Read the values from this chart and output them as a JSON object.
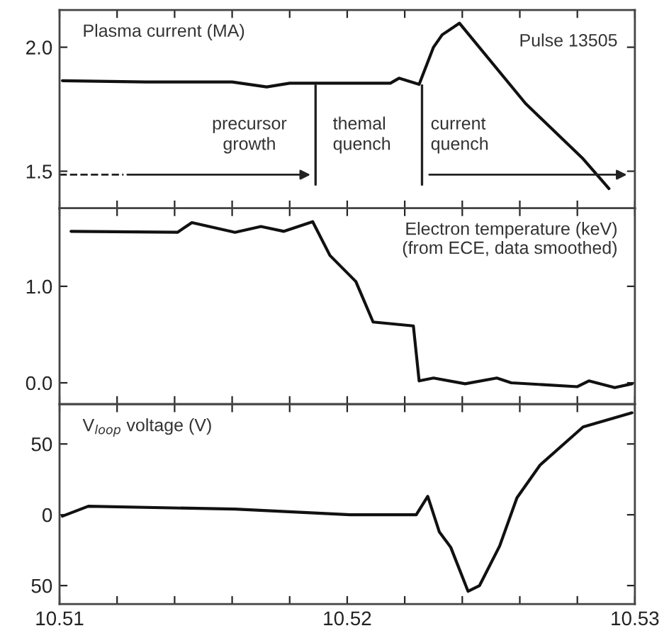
{
  "chart_data": [
    {
      "type": "line",
      "title": "Plasma current (MA)",
      "annotations": [
        "Pulse 13505",
        "precursor\ngrowth",
        "themal\nquench",
        "current\nquench"
      ],
      "series": [
        {
          "color": "#111111",
          "x": [
            10.5101,
            10.513,
            10.516,
            10.5172,
            10.518,
            10.52,
            10.5215,
            10.5218,
            10.5225,
            10.523,
            10.5233,
            10.5239,
            10.5262,
            10.5282,
            10.5291
          ],
          "values": [
            1.865,
            1.86,
            1.86,
            1.84,
            1.855,
            1.855,
            1.855,
            1.875,
            1.85,
            2.0,
            2.05,
            2.097,
            1.773,
            1.55,
            1.43
          ]
        }
      ],
      "xlim": [
        10.51,
        10.53
      ],
      "xticks": [
        10.51,
        {
          "value": 10.512,
          "label": null
        },
        {
          "value": 10.514,
          "label": null
        },
        {
          "value": 10.516,
          "label": null
        },
        {
          "value": 10.518,
          "label": null
        },
        10.52,
        {
          "value": 10.522,
          "label": null
        },
        {
          "value": 10.524,
          "label": null
        },
        {
          "value": 10.526,
          "label": null
        },
        {
          "value": 10.528,
          "label": null
        },
        10.53
      ],
      "ylim": [
        1.35,
        2.15
      ],
      "yticks": [
        {
          "value": 1.5,
          "label": "1.5"
        },
        {
          "value": 2,
          "label": "2.0"
        }
      ],
      "tick_labels": "y",
      "grid": false,
      "ref_lines": [
        {
          "axis": "x",
          "value": 10.5189,
          "label": null
        },
        {
          "axis": "x",
          "value": 10.5226,
          "label": null
        }
      ]
    },
    {
      "type": "line",
      "title": "Electron temperature (keV)\n(from ECE, data smoothed)",
      "series": [
        {
          "color": "#111111",
          "x": [
            10.5104,
            10.5141,
            10.5146,
            10.5161,
            10.517,
            10.5178,
            10.5188,
            10.5194,
            10.5203,
            10.5209,
            10.5223,
            10.5225,
            10.523,
            10.5241,
            10.5252,
            10.5257,
            10.528,
            10.5284,
            10.5293,
            10.5299
          ],
          "values": [
            1.57,
            1.56,
            1.66,
            1.56,
            1.62,
            1.57,
            1.67,
            1.32,
            1.05,
            0.63,
            0.59,
            0.02,
            0.05,
            -0.01,
            0.05,
            0.0,
            -0.04,
            0.02,
            -0.05,
            -0.01
          ]
        }
      ],
      "xlim": [
        10.51,
        10.53
      ],
      "xticks": [
        10.51,
        {
          "value": 10.512,
          "label": null
        },
        {
          "value": 10.514,
          "label": null
        },
        {
          "value": 10.516,
          "label": null
        },
        {
          "value": 10.518,
          "label": null
        },
        10.52,
        {
          "value": 10.522,
          "label": null
        },
        {
          "value": 10.524,
          "label": null
        },
        {
          "value": 10.526,
          "label": null
        },
        {
          "value": 10.528,
          "label": null
        },
        10.53
      ],
      "ylim": [
        -0.22,
        1.81
      ],
      "yticks": [
        {
          "value": 0,
          "label": "0.0"
        },
        {
          "value": 1,
          "label": "1.0"
        }
      ],
      "tick_labels": "y",
      "grid": false
    },
    {
      "type": "line",
      "title": "V$_{loop}$ voltage (V)",
      "series": [
        {
          "color": "#111111",
          "x": [
            10.5101,
            10.511,
            10.5161,
            10.5201,
            10.5224,
            10.5228,
            10.5232,
            10.5236,
            10.5242,
            10.5246,
            10.5253,
            10.5259,
            10.5267,
            10.5282,
            10.5299
          ],
          "values": [
            -1,
            6,
            4,
            0,
            0,
            13,
            -12,
            -23,
            -54,
            -50,
            -22,
            12,
            35,
            62,
            72
          ]
        }
      ],
      "xlim": [
        10.51,
        10.53
      ],
      "xticks": [
        10.51,
        {
          "value": 10.512,
          "label": null
        },
        {
          "value": 10.514,
          "label": null
        },
        {
          "value": 10.516,
          "label": null
        },
        {
          "value": 10.518,
          "label": null
        },
        10.52,
        {
          "value": 10.522,
          "label": null
        },
        {
          "value": 10.524,
          "label": null
        },
        {
          "value": 10.526,
          "label": null
        },
        {
          "value": 10.528,
          "label": null
        },
        10.53
      ],
      "ylim": [
        -63,
        78
      ],
      "yticks": [
        {
          "value": -50,
          "label": "50"
        },
        0,
        50
      ],
      "grid": false
    }
  ]
}
